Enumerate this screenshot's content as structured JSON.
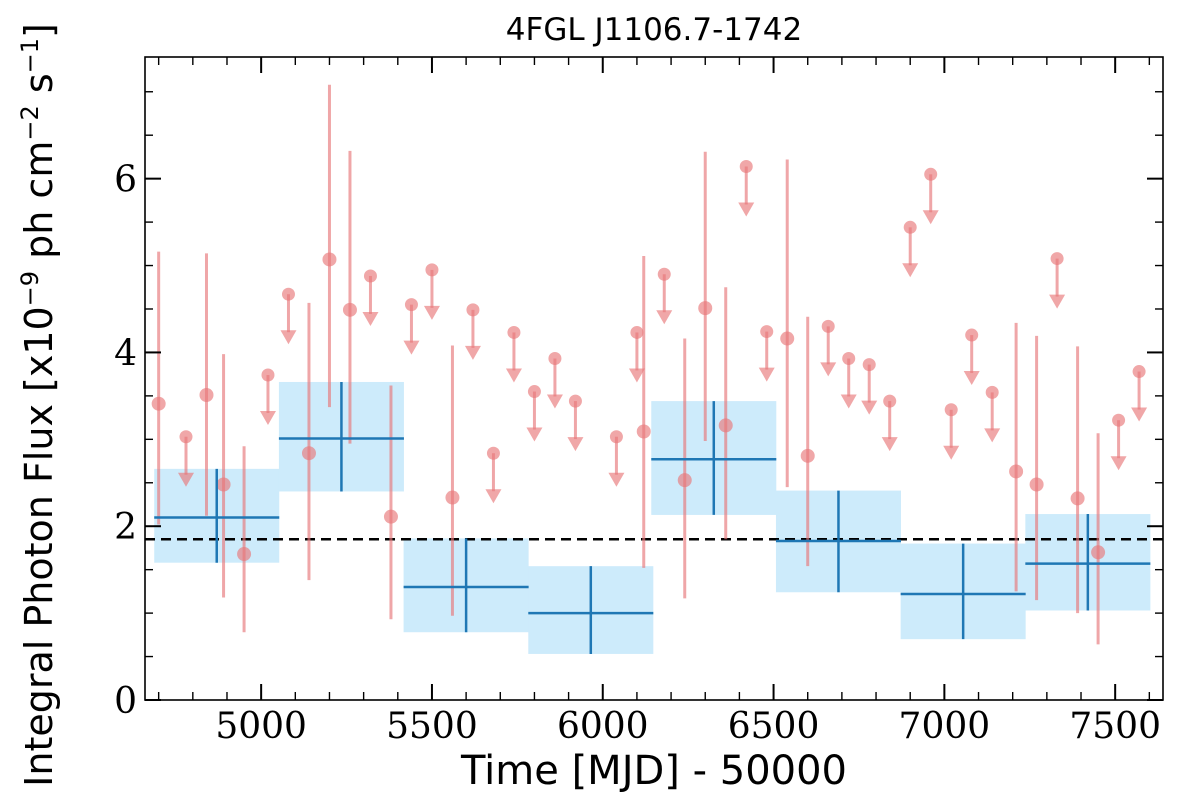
{
  "chart_data": {
    "type": "scatter",
    "title": "4FGL J1106.7-1742",
    "xlabel": "Time [MJD] - 50000",
    "ylabel": {
      "prefix": "Integral Photon Flux [x10",
      "exp1": "−9",
      "mid1": " ph cm",
      "exp2": "−2",
      "mid2": " s",
      "exp3": "−1",
      "suffix": "]"
    },
    "xlim": [
      4660,
      7640
    ],
    "ylim": [
      0,
      7.4
    ],
    "xticks": [
      "5000",
      "5500",
      "6000",
      "6500",
      "7000",
      "7500"
    ],
    "xtick_values": [
      5000,
      5500,
      6000,
      6500,
      7000,
      7500
    ],
    "yticks": [
      "0",
      "2",
      "4",
      "6"
    ],
    "ytick_values": [
      0,
      2,
      4,
      6
    ],
    "average_flux": 1.85,
    "colors": {
      "points": "#e8787a",
      "bins_line": "#1f77b4",
      "bins_fill": "#cdebfb",
      "average_line": "#000000"
    },
    "binned": [
      {
        "x": 4870,
        "xerr": 183,
        "y": 2.1,
        "ylo": 1.58,
        "yhi": 2.66
      },
      {
        "x": 5235,
        "xerr": 183,
        "y": 3.01,
        "ylo": 2.4,
        "yhi": 3.66
      },
      {
        "x": 5600,
        "xerr": 183,
        "y": 1.3,
        "ylo": 0.78,
        "yhi": 1.86
      },
      {
        "x": 5965,
        "xerr": 183,
        "y": 1.0,
        "ylo": 0.53,
        "yhi": 1.54
      },
      {
        "x": 6325,
        "xerr": 183,
        "y": 2.77,
        "ylo": 2.13,
        "yhi": 3.44
      },
      {
        "x": 6690,
        "xerr": 183,
        "y": 1.83,
        "ylo": 1.24,
        "yhi": 2.41
      },
      {
        "x": 7055,
        "xerr": 183,
        "y": 1.22,
        "ylo": 0.7,
        "yhi": 1.8
      },
      {
        "x": 7420,
        "xerr": 183,
        "y": 1.57,
        "ylo": 1.03,
        "yhi": 2.14
      }
    ],
    "detections": [
      {
        "x": 4700,
        "y": 3.41,
        "ylo": 2.02,
        "yhi": 5.16
      },
      {
        "x": 4840,
        "y": 3.51,
        "ylo": 2.12,
        "yhi": 5.14
      },
      {
        "x": 4890,
        "y": 2.48,
        "ylo": 1.18,
        "yhi": 3.98
      },
      {
        "x": 4950,
        "y": 1.68,
        "ylo": 0.78,
        "yhi": 2.92
      },
      {
        "x": 5140,
        "y": 2.84,
        "ylo": 1.38,
        "yhi": 4.57
      },
      {
        "x": 5200,
        "y": 5.07,
        "ylo": 3.37,
        "yhi": 7.08
      },
      {
        "x": 5260,
        "y": 4.49,
        "ylo": 2.95,
        "yhi": 6.32
      },
      {
        "x": 5380,
        "y": 2.11,
        "ylo": 0.93,
        "yhi": 3.62
      },
      {
        "x": 5560,
        "y": 2.33,
        "ylo": 0.97,
        "yhi": 4.08
      },
      {
        "x": 6120,
        "y": 3.09,
        "ylo": 1.52,
        "yhi": 5.11
      },
      {
        "x": 6240,
        "y": 2.53,
        "ylo": 1.17,
        "yhi": 4.16
      },
      {
        "x": 6300,
        "y": 4.51,
        "ylo": 2.98,
        "yhi": 6.31
      },
      {
        "x": 6360,
        "y": 3.16,
        "ylo": 1.85,
        "yhi": 4.75
      },
      {
        "x": 6540,
        "y": 4.16,
        "ylo": 2.45,
        "yhi": 6.22
      },
      {
        "x": 6600,
        "y": 2.81,
        "ylo": 1.54,
        "yhi": 4.41
      },
      {
        "x": 7210,
        "y": 2.63,
        "ylo": 1.25,
        "yhi": 4.34
      },
      {
        "x": 7270,
        "y": 2.48,
        "ylo": 1.15,
        "yhi": 4.19
      },
      {
        "x": 7390,
        "y": 2.32,
        "ylo": 1.0,
        "yhi": 4.07
      },
      {
        "x": 7450,
        "y": 1.7,
        "ylo": 0.64,
        "yhi": 3.07
      }
    ],
    "upper_limits": [
      {
        "x": 4780,
        "y": 3.03
      },
      {
        "x": 5020,
        "y": 3.74
      },
      {
        "x": 5080,
        "y": 4.67
      },
      {
        "x": 5320,
        "y": 4.88
      },
      {
        "x": 5440,
        "y": 4.55
      },
      {
        "x": 5500,
        "y": 4.95
      },
      {
        "x": 5620,
        "y": 4.49
      },
      {
        "x": 5680,
        "y": 2.84
      },
      {
        "x": 5740,
        "y": 4.23
      },
      {
        "x": 5800,
        "y": 3.55
      },
      {
        "x": 5860,
        "y": 3.93
      },
      {
        "x": 5920,
        "y": 3.44
      },
      {
        "x": 6040,
        "y": 3.03
      },
      {
        "x": 6100,
        "y": 4.23
      },
      {
        "x": 6180,
        "y": 4.9
      },
      {
        "x": 6420,
        "y": 6.14
      },
      {
        "x": 6480,
        "y": 4.24
      },
      {
        "x": 6660,
        "y": 4.3
      },
      {
        "x": 6720,
        "y": 3.93
      },
      {
        "x": 6780,
        "y": 3.86
      },
      {
        "x": 6840,
        "y": 3.44
      },
      {
        "x": 6900,
        "y": 5.44
      },
      {
        "x": 6960,
        "y": 6.05
      },
      {
        "x": 7020,
        "y": 3.34
      },
      {
        "x": 7080,
        "y": 4.2
      },
      {
        "x": 7140,
        "y": 3.54
      },
      {
        "x": 7330,
        "y": 5.08
      },
      {
        "x": 7510,
        "y": 3.22
      },
      {
        "x": 7570,
        "y": 3.78
      }
    ]
  }
}
